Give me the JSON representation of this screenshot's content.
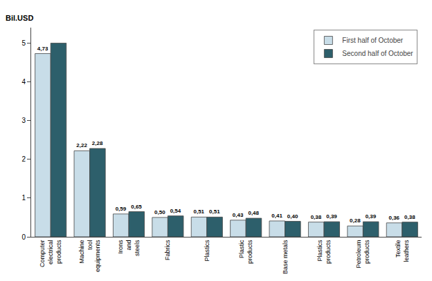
{
  "chart_data": {
    "type": "bar",
    "ylabel": "Bil.USD",
    "categories": [
      "Computer\nelectrical\nproducts",
      "Machine\ntool\nequipments",
      "Irons\nand\nsteels",
      "Fabrics",
      "Plastics",
      "Plastic\nproducts",
      "Base metals",
      "Plastics\nproducts",
      "Petroleum\nproducts",
      "Textile\nleathers"
    ],
    "series": [
      {
        "name": "First half of October",
        "color": "#c8dde8",
        "values": [
          4.73,
          2.22,
          0.59,
          0.5,
          0.51,
          0.43,
          0.41,
          0.38,
          0.28,
          0.36
        ],
        "value_labels": [
          "4,73",
          "2,22",
          "0,59",
          "0,50",
          "0,51",
          "0,43",
          "0,41",
          "0,38",
          "0,28",
          "0,36"
        ]
      },
      {
        "name": "Second half of October",
        "color": "#2d5f6b",
        "values": [
          5.0,
          2.28,
          0.65,
          0.54,
          0.51,
          0.48,
          0.4,
          0.39,
          0.39,
          0.38
        ],
        "value_labels": [
          null,
          "2,28",
          "0,65",
          "0,54",
          "0,51",
          "0,48",
          "0,40",
          "0,39",
          "0,39",
          "0,38"
        ]
      }
    ],
    "ylim": [
      0,
      5.4
    ],
    "yticks": [
      0,
      1,
      2,
      3,
      4,
      5
    ],
    "grid": false,
    "legend": "upper right",
    "data_labels": true
  }
}
